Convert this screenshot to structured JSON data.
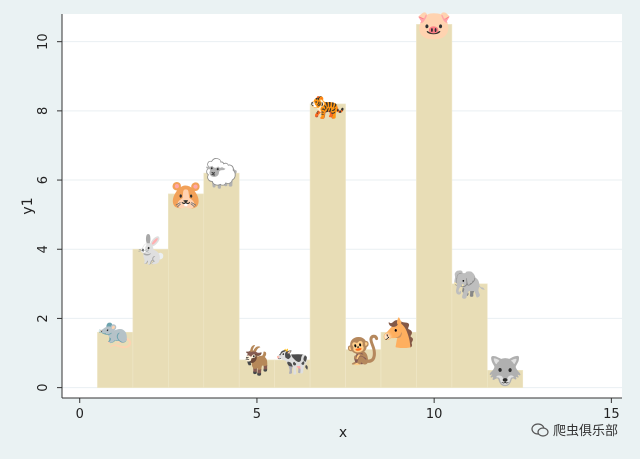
{
  "chart_data": {
    "type": "bar",
    "xlabel": "x",
    "ylabel": "y1",
    "xlim": [
      -0.5,
      15.3
    ],
    "ylim": [
      -0.3,
      10.8
    ],
    "xticks": [
      0,
      5,
      10,
      15
    ],
    "yticks": [
      0,
      2,
      4,
      6,
      8,
      10
    ],
    "bar_width": 1,
    "bar_color": "#e8ddb6",
    "bars": [
      {
        "x": 1,
        "y": 1.6,
        "emoji": "🐀",
        "label": "rat"
      },
      {
        "x": 2,
        "y": 4.0,
        "emoji": "🐇",
        "label": "rabbit"
      },
      {
        "x": 3,
        "y": 5.6,
        "emoji": "🐹",
        "label": "hamster"
      },
      {
        "x": 4,
        "y": 6.2,
        "emoji": "🐑",
        "label": "sheep"
      },
      {
        "x": 5,
        "y": 0.8,
        "emoji": "🐐",
        "label": "goat"
      },
      {
        "x": 6,
        "y": 0.8,
        "emoji": "🐄",
        "label": "cow"
      },
      {
        "x": 7,
        "y": 8.2,
        "emoji": "🐅",
        "label": "tiger"
      },
      {
        "x": 8,
        "y": 1.1,
        "emoji": "🐒",
        "label": "monkey"
      },
      {
        "x": 9,
        "y": 1.6,
        "emoji": "🐴",
        "label": "horse"
      },
      {
        "x": 10,
        "y": 10.5,
        "emoji": "🐷",
        "label": "pig"
      },
      {
        "x": 11,
        "y": 3.0,
        "emoji": "🐘",
        "label": "elephant"
      },
      {
        "x": 12,
        "y": 0.5,
        "emoji": "🐺",
        "label": "wolf"
      }
    ]
  },
  "watermark": {
    "text": "爬虫俱乐部",
    "icon": "wechat-icon"
  }
}
